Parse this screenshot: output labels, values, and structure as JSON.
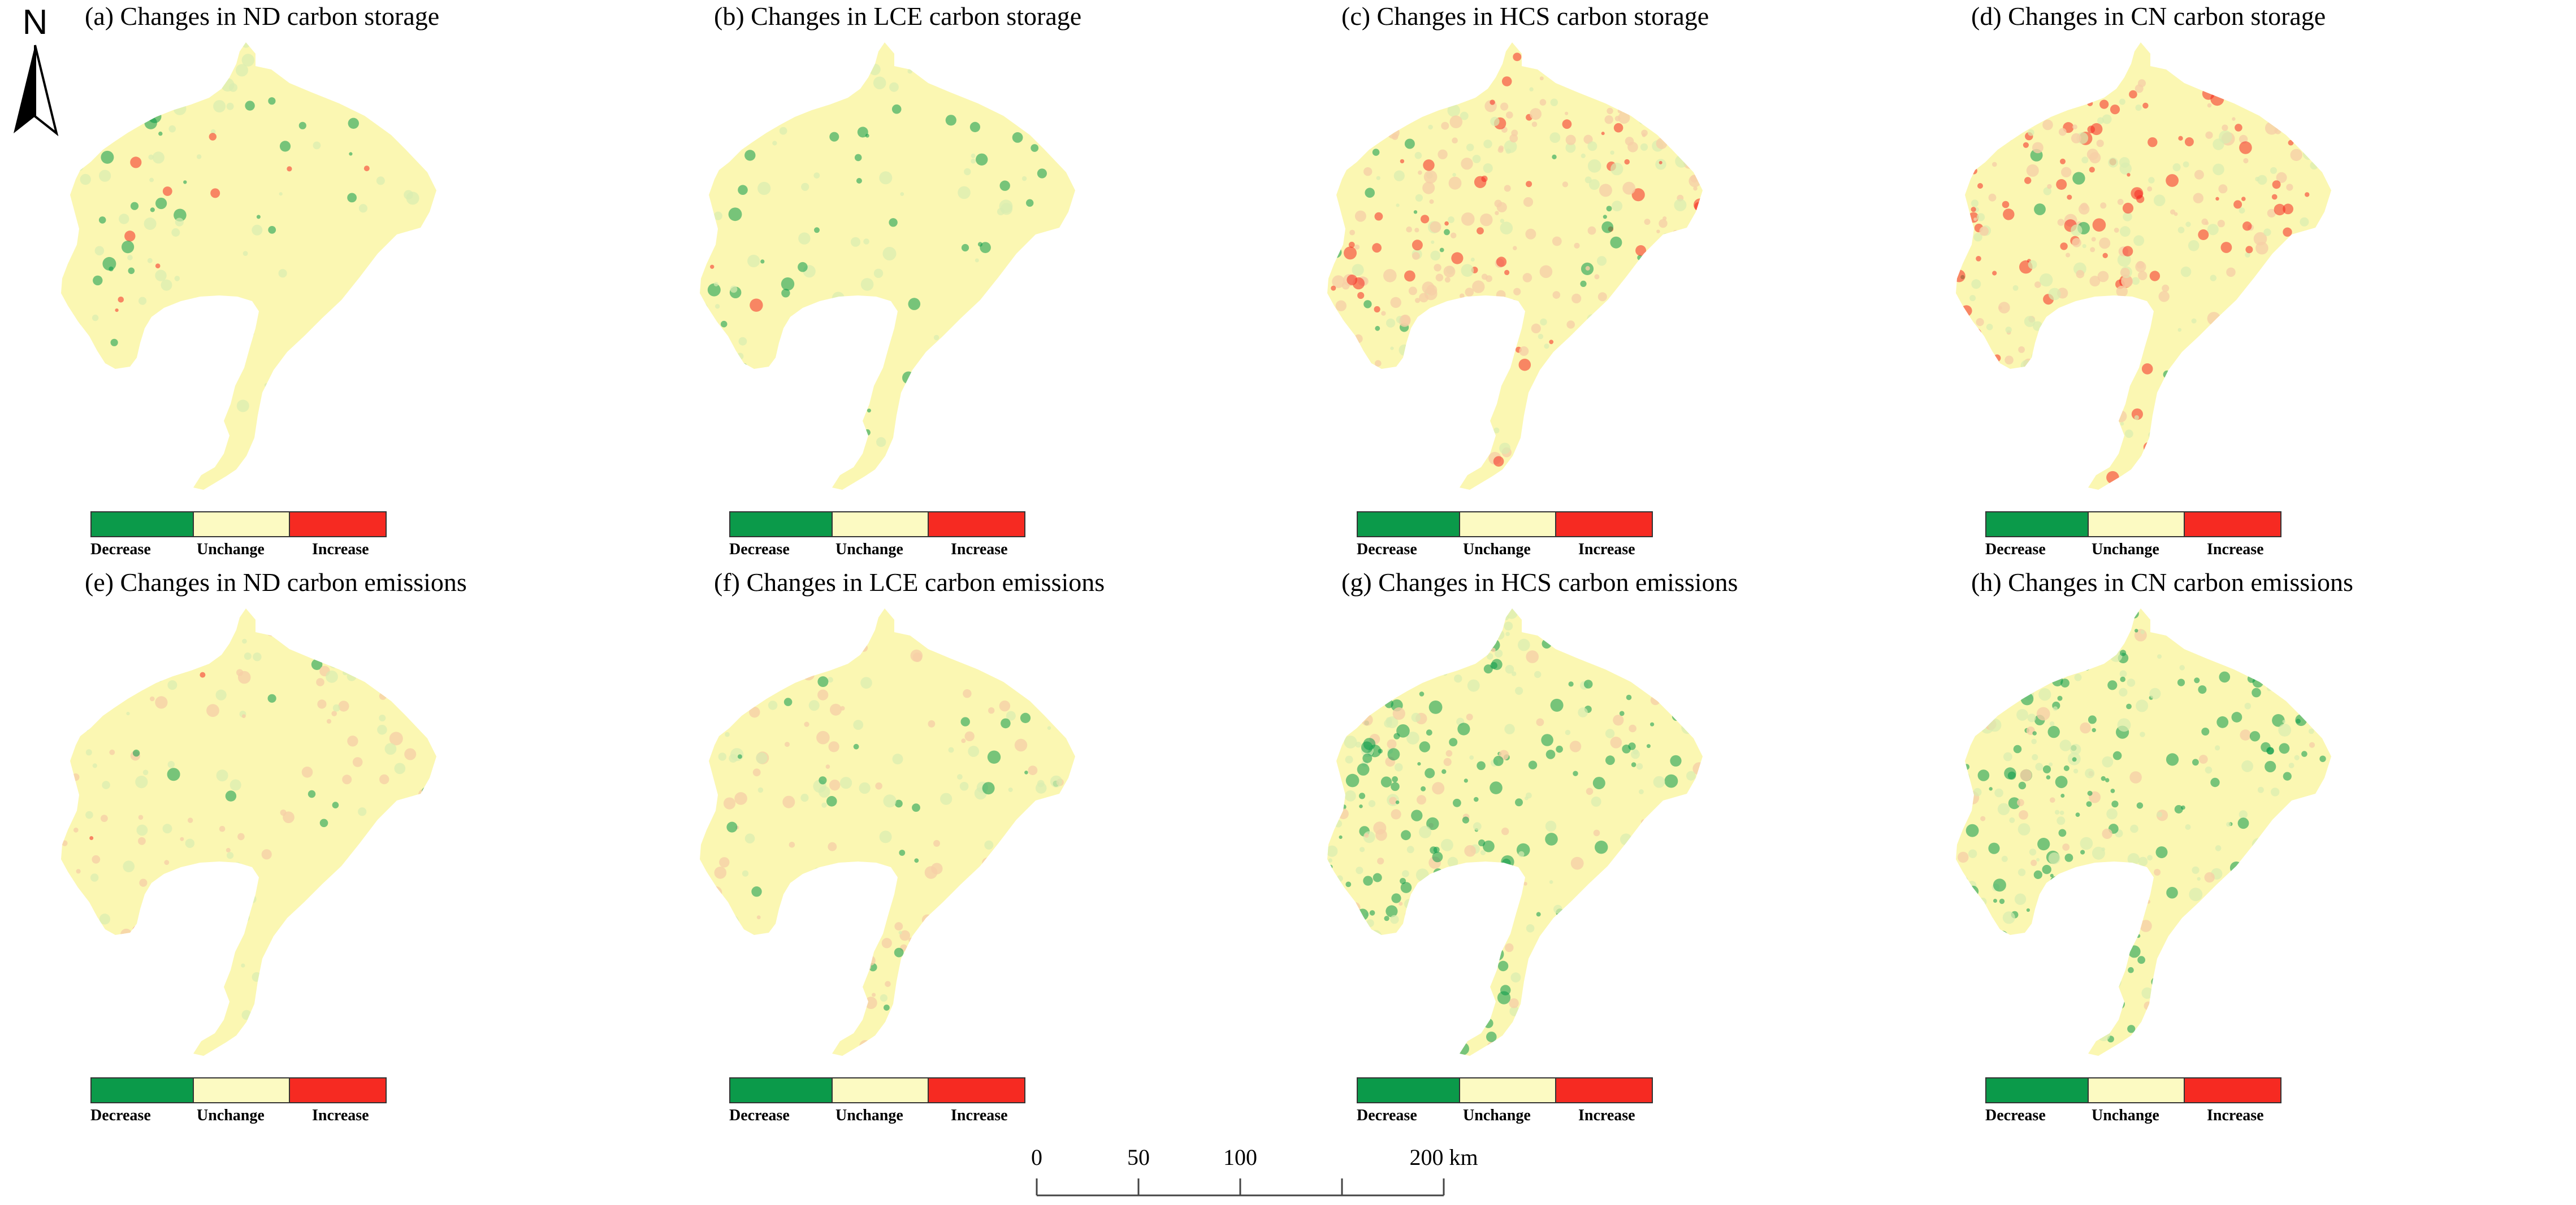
{
  "north": {
    "label": "N",
    "icon": "north-arrow-icon"
  },
  "colors": {
    "decrease": "#0b9a4a",
    "unchange": "#fcfac2",
    "increase": "#f62a22",
    "base": "#fbf7b2",
    "green_tint": "#d8ecb0",
    "orange_tint": "#f6cfa6"
  },
  "legend": {
    "decrease": "Decrease",
    "unchange": "Unchange",
    "increase": "Increase"
  },
  "panels": [
    {
      "title": "(a) Changes in ND carbon storage"
    },
    {
      "title": "(b) Changes in LCE carbon storage"
    },
    {
      "title": "(c) Changes in HCS carbon storage"
    },
    {
      "title": "(d) Changes in CN carbon storage"
    },
    {
      "title": "(e) Changes in ND carbon emissions"
    },
    {
      "title": "(f) Changes in LCE carbon emissions"
    },
    {
      "title": "(g) Changes in HCS carbon emissions"
    },
    {
      "title": "(h) Changes in CN carbon emissions"
    }
  ],
  "scalebar": {
    "ticks": [
      "0",
      "50",
      "100",
      "200 km"
    ]
  }
}
